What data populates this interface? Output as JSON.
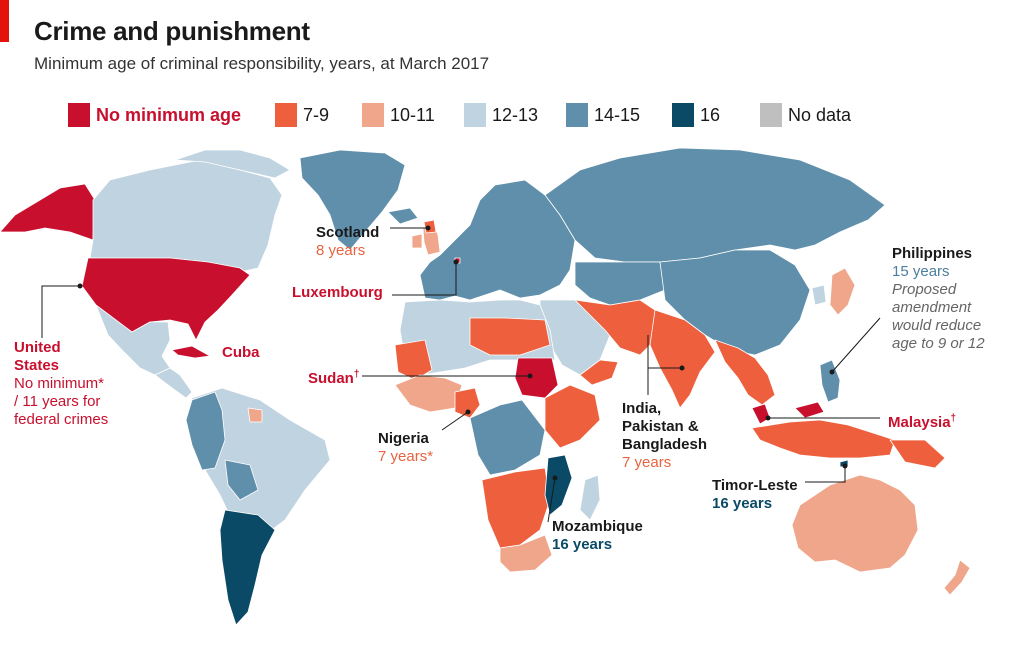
{
  "header": {
    "title": "Crime and punishment",
    "subtitle": "Minimum age of criminal responsibility, years, at March 2017"
  },
  "colors": {
    "no_minimum": "#c8102e",
    "age_7_9": "#ee5f3d",
    "age_10_11": "#f0a68b",
    "age_12_13": "#c0d3e0",
    "age_14_15": "#5f8fab",
    "age_16": "#0b4a66",
    "no_data": "#bfbfbf"
  },
  "legend": [
    {
      "label": "No minimum age",
      "color": "#c8102e"
    },
    {
      "label": "7-9",
      "color": "#ee5f3d"
    },
    {
      "label": "10-11",
      "color": "#f0a68b"
    },
    {
      "label": "12-13",
      "color": "#c0d3e0"
    },
    {
      "label": "14-15",
      "color": "#5f8fab"
    },
    {
      "label": "16",
      "color": "#0b4a66"
    },
    {
      "label": "No data",
      "color": "#bfbfbf"
    }
  ],
  "annotations": {
    "scotland": {
      "name": "Scotland",
      "value": "8 years"
    },
    "luxembourg": {
      "name": "Luxembourg"
    },
    "usa": {
      "name_line1": "United",
      "name_line2": "States",
      "value_line1": "No minimum*",
      "value_line2": "/ 11 years for",
      "value_line3": "federal crimes"
    },
    "cuba": {
      "name": "Cuba"
    },
    "sudan": {
      "name": "Sudan",
      "mark": "†"
    },
    "nigeria": {
      "name": "Nigeria",
      "value": "7 years*"
    },
    "india": {
      "name_line1": "India,",
      "name_line2": "Pakistan &",
      "name_line3": "Bangladesh",
      "value": "7 years"
    },
    "mozambique": {
      "name": "Mozambique",
      "value": "16 years"
    },
    "timor": {
      "name": "Timor-Leste",
      "value": "16 years"
    },
    "malaysia": {
      "name": "Malaysia",
      "mark": "†"
    },
    "philippines": {
      "name": "Philippines",
      "value": "15 years",
      "note_line1": "Proposed",
      "note_line2": "amendment",
      "note_line3": "would reduce",
      "note_line4": "age to 9 or 12"
    }
  }
}
